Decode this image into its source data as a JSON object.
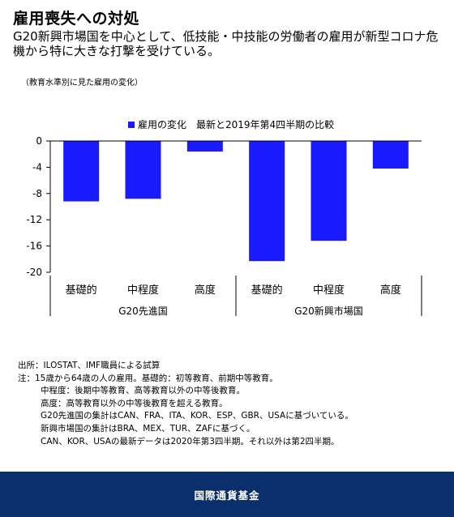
{
  "header": {
    "title": "雇用喪失への対処",
    "subtitle": "G20新興市場国を中心として、低技能・中技能の労働者の雇用が新型コロナ危機から特に大きな打撃を受けている。",
    "note": "（教育水準別に見た雇用の変化）"
  },
  "chart_data": {
    "type": "bar",
    "groups": [
      "G20先進国",
      "G20新興市場国"
    ],
    "categories": [
      "基礎的",
      "中程度",
      "高度",
      "基礎的",
      "中程度",
      "高度"
    ],
    "series": [
      {
        "name": "雇用の変化　最新と2019年第4四半期の比較",
        "values": [
          -9.2,
          -8.8,
          -1.6,
          -18.3,
          -15.2,
          -4.2
        ]
      }
    ],
    "ylim": [
      -20,
      0
    ],
    "yticks": [
      0,
      -4,
      -8,
      -12,
      -16,
      -20
    ],
    "bar_color": "#1a1aff",
    "legend_position": "top",
    "grid": false
  },
  "footnotes": [
    "出所：ILOSTAT、IMF職員による試算",
    "注：15歳から64歳の人の雇用。基礎的：初等教育、前期中等教育。",
    "中程度：後期中等教育、高等教育以外の中等後教育。",
    "高度：高等教育以外の中等後教育を超える教育。",
    "G20先進国の集計はCAN、FRA、ITA、KOR、ESP、GBR、USAに基づいている。",
    "新興市場国の集計はBRA、MEX、TUR、ZAFに基づく。",
    "CAN、KOR、USAの最新データは2020年第3四半期。それ以外は第2四半期。"
  ],
  "footer": {
    "label": "国際通貨基金"
  }
}
